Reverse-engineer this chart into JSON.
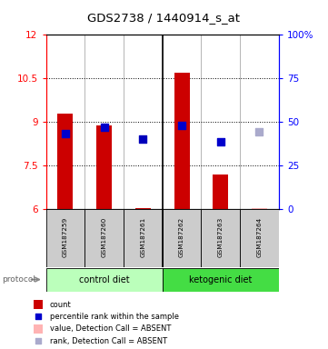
{
  "title": "GDS2738 / 1440914_s_at",
  "samples": [
    "GSM187259",
    "GSM187260",
    "GSM187261",
    "GSM187262",
    "GSM187263",
    "GSM187264"
  ],
  "bar_values": [
    9.3,
    8.9,
    6.05,
    10.7,
    7.2,
    6.05
  ],
  "bar_colors": [
    "#cc0000",
    "#cc0000",
    "#cc0000",
    "#cc0000",
    "#cc0000",
    "#ffb3b3"
  ],
  "bar_bottom": 6.0,
  "rank_values": [
    8.62,
    8.82,
    8.42,
    8.88,
    8.32,
    8.67
  ],
  "rank_colors": [
    "#0000cc",
    "#0000cc",
    "#0000bb",
    "#0000cc",
    "#0000cc",
    "#aaaacc"
  ],
  "ylim_left": [
    6,
    12
  ],
  "ylim_right": [
    0,
    100
  ],
  "yticks_left": [
    6,
    7.5,
    9,
    10.5,
    12
  ],
  "yticks_right": [
    0,
    25,
    50,
    75,
    100
  ],
  "ytick_labels_left": [
    "6",
    "7.5",
    "9",
    "10.5",
    "12"
  ],
  "ytick_labels_right": [
    "0",
    "25",
    "50",
    "75",
    "100%"
  ],
  "bar_width": 0.4,
  "rank_marker_size": 40,
  "control_color": "#bbffbb",
  "ketogenic_color": "#44dd44",
  "sample_box_color": "#cccccc",
  "grid_color": "#333333"
}
